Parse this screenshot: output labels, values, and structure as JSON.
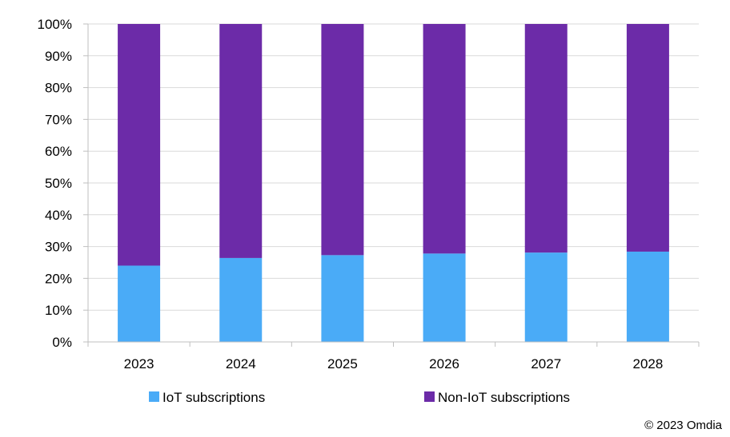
{
  "chart_data": {
    "type": "bar",
    "stacked": true,
    "percent": true,
    "title": "",
    "xlabel": "",
    "ylabel": "",
    "categories": [
      "2023",
      "2024",
      "2025",
      "2026",
      "2027",
      "2028"
    ],
    "series": [
      {
        "name": "IoT subscriptions",
        "color": "#4aabf7",
        "values": [
          24,
          26.4,
          27.3,
          27.8,
          28.1,
          28.4
        ]
      },
      {
        "name": "Non-IoT subscriptions",
        "color": "#6c2ba8",
        "values": [
          76,
          73.6,
          72.7,
          72.2,
          71.9,
          71.6
        ]
      }
    ],
    "ylim": [
      0,
      100
    ],
    "yticks": [
      "0%",
      "10%",
      "20%",
      "30%",
      "40%",
      "50%",
      "60%",
      "70%",
      "80%",
      "90%",
      "100%"
    ],
    "grid": true,
    "legend_position": "bottom"
  },
  "credit": "© 2023 Omdia"
}
